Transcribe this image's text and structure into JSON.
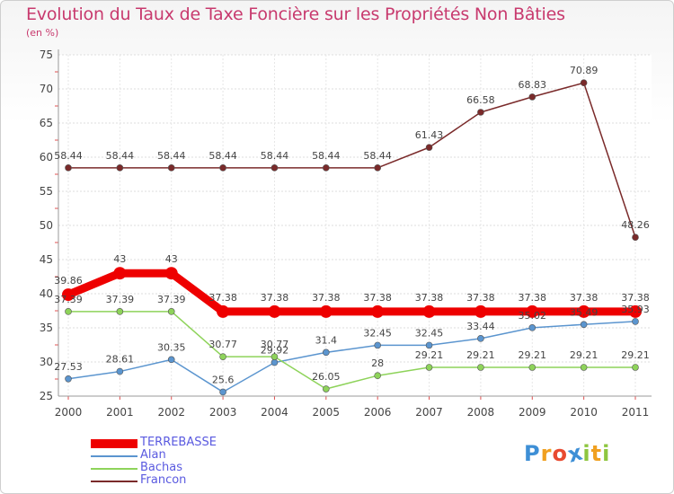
{
  "chart_data": {
    "type": "line",
    "title": "Evolution du Taux de Taxe Foncière sur les Propriétés Non Bâties",
    "subtitle": "(en %)",
    "xlabel": "",
    "ylabel": "",
    "ylim": [
      25,
      75
    ],
    "yticks": [
      25,
      30,
      35,
      40,
      45,
      50,
      55,
      60,
      65,
      70,
      75
    ],
    "categories": [
      "2000",
      "2001",
      "2002",
      "2003",
      "2004",
      "2005",
      "2006",
      "2007",
      "2008",
      "2009",
      "2010",
      "2011"
    ],
    "series": [
      {
        "name": "TERREBASSE",
        "color": "#ee0000",
        "values": [
          39.86,
          43,
          43,
          37.38,
          37.38,
          37.38,
          37.38,
          37.38,
          37.38,
          37.38,
          37.38,
          37.38
        ],
        "labels": [
          "39.86",
          "43",
          "43",
          "37.38",
          "37.38",
          "37.38",
          "37.38",
          "37.38",
          "37.38",
          "37.38",
          "37.38",
          "37.38"
        ]
      },
      {
        "name": "Alan",
        "color": "#5b95cf",
        "values": [
          27.53,
          28.61,
          30.35,
          25.6,
          29.92,
          31.4,
          32.45,
          32.45,
          33.44,
          35.02,
          35.49,
          35.93
        ],
        "labels": [
          "27.53",
          "28.61",
          "30.35",
          "25.6",
          "29.92",
          "31.4",
          "32.45",
          "32.45",
          "33.44",
          "35.02",
          "35.49",
          "35.93"
        ]
      },
      {
        "name": "Bachas",
        "color": "#8ed35a",
        "values": [
          37.39,
          37.39,
          37.39,
          30.77,
          30.77,
          26.05,
          28,
          29.21,
          29.21,
          29.21,
          29.21,
          29.21
        ],
        "labels": [
          "37.39",
          "37.39",
          "37.39",
          "30.77",
          "30.77",
          "26.05",
          "28",
          "29.21",
          "29.21",
          "29.21",
          "29.21",
          "29.21"
        ]
      },
      {
        "name": "Francon",
        "color": "#7a2a2a",
        "values": [
          58.44,
          58.44,
          58.44,
          58.44,
          58.44,
          58.44,
          58.44,
          61.43,
          66.58,
          68.83,
          70.89,
          48.26
        ],
        "labels": [
          "58.44",
          "58.44",
          "58.44",
          "58.44",
          "58.44",
          "58.44",
          "58.44",
          "61.43",
          "66.58",
          "68.83",
          "70.89",
          "48.26"
        ]
      }
    ],
    "grid": true,
    "legend_position": "bottom-left"
  },
  "logo": {
    "letters": [
      "P",
      "r",
      "o",
      "x",
      "i",
      "t",
      "i"
    ],
    "colors": [
      "#3e8fd6",
      "#f0a020",
      "#e84a30",
      "#3e8fd6",
      "#8ec63f",
      "#f0a020",
      "#8ec63f"
    ]
  }
}
